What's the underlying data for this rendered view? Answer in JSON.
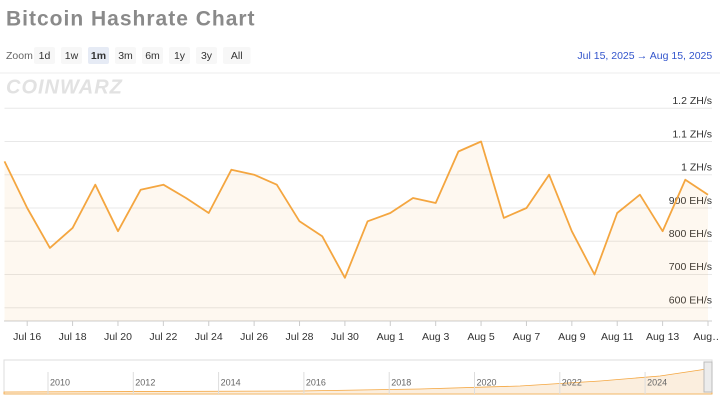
{
  "chart_data": {
    "type": "line",
    "title": "Bitcoin Hashrate Chart",
    "zoom_label": "Zoom",
    "zoom_buttons": [
      "1d",
      "1w",
      "1m",
      "3m",
      "6m",
      "1y",
      "3y",
      "All"
    ],
    "zoom_active": "1m",
    "range_from": "Jul 15, 2025",
    "range_arrow": "→",
    "range_to": "Aug 15, 2025",
    "watermark": "COINWARZ",
    "x": [
      "2025-07-15",
      "2025-07-16",
      "2025-07-17",
      "2025-07-18",
      "2025-07-19",
      "2025-07-20",
      "2025-07-21",
      "2025-07-22",
      "2025-07-23",
      "2025-07-24",
      "2025-07-25",
      "2025-07-26",
      "2025-07-27",
      "2025-07-28",
      "2025-07-29",
      "2025-07-30",
      "2025-07-31",
      "2025-08-01",
      "2025-08-02",
      "2025-08-03",
      "2025-08-04",
      "2025-08-05",
      "2025-08-06",
      "2025-08-07",
      "2025-08-08",
      "2025-08-09",
      "2025-08-10",
      "2025-08-11",
      "2025-08-12",
      "2025-08-13",
      "2025-08-14",
      "2025-08-15"
    ],
    "series": [
      {
        "name": "Hashrate",
        "color": "#f4a640",
        "values": [
          1040,
          900,
          780,
          840,
          970,
          830,
          955,
          970,
          930,
          885,
          1015,
          1000,
          970,
          860,
          815,
          690,
          860,
          885,
          930,
          915,
          1070,
          1100,
          870,
          900,
          1000,
          830,
          700,
          885,
          940,
          830,
          985,
          940
        ]
      }
    ],
    "xlim": [
      "2025-07-15",
      "2025-08-15"
    ],
    "xticks": [
      {
        "value": "2025-07-16",
        "label": "Jul 16"
      },
      {
        "value": "2025-07-18",
        "label": "Jul 18"
      },
      {
        "value": "2025-07-20",
        "label": "Jul 20"
      },
      {
        "value": "2025-07-22",
        "label": "Jul 22"
      },
      {
        "value": "2025-07-24",
        "label": "Jul 24"
      },
      {
        "value": "2025-07-26",
        "label": "Jul 26"
      },
      {
        "value": "2025-07-28",
        "label": "Jul 28"
      },
      {
        "value": "2025-07-30",
        "label": "Jul 30"
      },
      {
        "value": "2025-08-01",
        "label": "Aug 1"
      },
      {
        "value": "2025-08-03",
        "label": "Aug 3"
      },
      {
        "value": "2025-08-05",
        "label": "Aug 5"
      },
      {
        "value": "2025-08-07",
        "label": "Aug 7"
      },
      {
        "value": "2025-08-09",
        "label": "Aug 9"
      },
      {
        "value": "2025-08-11",
        "label": "Aug 11"
      },
      {
        "value": "2025-08-13",
        "label": "Aug 13"
      },
      {
        "value": "2025-08-15",
        "label": "Aug…"
      }
    ],
    "ylim": [
      560,
      1300
    ],
    "yticks": [
      {
        "value": 600,
        "label": "600 EH/s"
      },
      {
        "value": 700,
        "label": "700 EH/s"
      },
      {
        "value": 800,
        "label": "800 EH/s"
      },
      {
        "value": 900,
        "label": "900 EH/s"
      },
      {
        "value": 1000,
        "label": "1 ZH/s"
      },
      {
        "value": 1100,
        "label": "1.1 ZH/s"
      },
      {
        "value": 1200,
        "label": "1.2 ZH/s"
      }
    ],
    "grid": true,
    "navigator_labels": [
      "2010",
      "2012",
      "2014",
      "2016",
      "2018",
      "2020",
      "2022",
      "2024"
    ]
  }
}
